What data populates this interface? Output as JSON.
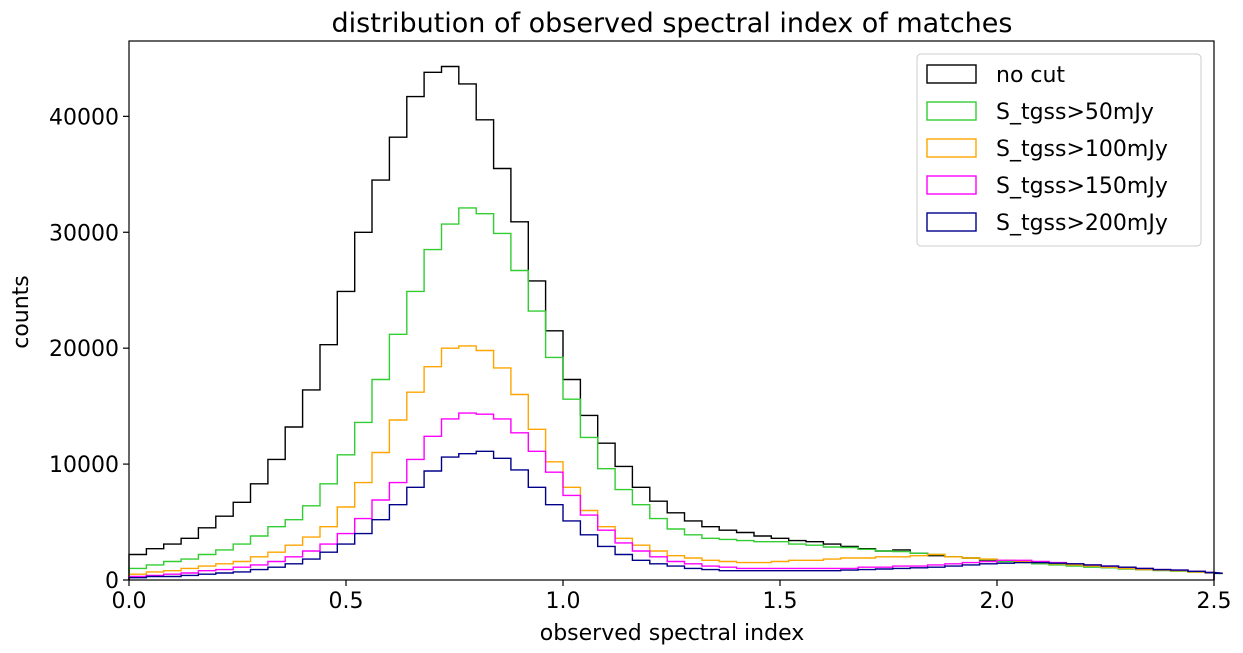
{
  "chart_data": {
    "type": "histogram",
    "title": "distribution of observed spectral index of matches",
    "xlabel": "observed spectral index",
    "ylabel": "counts",
    "xlim": [
      0.0,
      2.5
    ],
    "ylim": [
      0,
      46500
    ],
    "xticks": [
      0.0,
      0.5,
      1.0,
      1.5,
      2.0,
      2.5
    ],
    "xtick_labels": [
      "0.0",
      "0.5",
      "1.0",
      "1.5",
      "2.0",
      "2.5"
    ],
    "yticks": [
      0,
      10000,
      20000,
      30000,
      40000
    ],
    "ytick_labels": [
      "0",
      "10000",
      "20000",
      "30000",
      "40000"
    ],
    "bin_edges_start": 0.0,
    "bin_width": 0.04,
    "legend_position": "top-right",
    "series": [
      {
        "name": "no cut",
        "color": "#000000",
        "values": [
          2200,
          2700,
          3100,
          3600,
          4500,
          5500,
          6700,
          8300,
          10400,
          13200,
          16400,
          20300,
          24900,
          30000,
          34500,
          38200,
          41700,
          43800,
          44300,
          42800,
          39700,
          35500,
          30900,
          25800,
          21500,
          17300,
          14200,
          11800,
          9800,
          8000,
          6800,
          5800,
          5100,
          4600,
          4300,
          4100,
          3800,
          3600,
          3400,
          3300,
          3100,
          2900,
          2700,
          2500,
          2600,
          2300,
          2100,
          2000,
          1900,
          1700,
          1650,
          1550,
          1450,
          1350,
          1250,
          1150,
          1050,
          1000,
          900,
          850,
          800,
          700,
          620,
          580
        ]
      },
      {
        "name": "S_tgss>50mJy",
        "color": "#32cd32",
        "values": [
          1000,
          1300,
          1600,
          1800,
          2200,
          2600,
          3100,
          3800,
          4600,
          5200,
          6400,
          8300,
          10800,
          13600,
          17300,
          21200,
          24900,
          28500,
          30700,
          32100,
          31600,
          29900,
          26700,
          23200,
          19200,
          15600,
          12300,
          9600,
          7800,
          6500,
          5300,
          4400,
          3900,
          3600,
          3500,
          3400,
          3300,
          3300,
          3100,
          3000,
          2850,
          2800,
          2650,
          2500,
          2450,
          2300,
          2200,
          2000,
          1900,
          1750,
          1600,
          1500,
          1400,
          1300,
          1200,
          1100,
          1050,
          950,
          880,
          820,
          760,
          680,
          600,
          560
        ]
      },
      {
        "name": "S_tgss>100mJy",
        "color": "#ffa500",
        "values": [
          500,
          700,
          800,
          1000,
          1200,
          1400,
          1600,
          2000,
          2400,
          3000,
          3700,
          4600,
          6300,
          8400,
          11000,
          13800,
          16200,
          18400,
          20000,
          20200,
          19800,
          18300,
          16000,
          13000,
          10200,
          8000,
          6000,
          4600,
          3600,
          3000,
          2500,
          2100,
          1900,
          1700,
          1600,
          1500,
          1500,
          1600,
          1700,
          1700,
          1800,
          1900,
          1900,
          2000,
          2000,
          2100,
          2200,
          2000,
          1900,
          1800,
          1700,
          1600,
          1500,
          1400,
          1300,
          1200,
          1100,
          1000,
          900,
          850,
          800,
          700,
          620,
          580
        ]
      },
      {
        "name": "S_tgss>150mJy",
        "color": "#ff00ff",
        "values": [
          300,
          400,
          500,
          600,
          800,
          900,
          1100,
          1300,
          1600,
          2000,
          2500,
          3100,
          4000,
          5300,
          6900,
          8400,
          10400,
          12400,
          13900,
          14400,
          14300,
          13900,
          12700,
          11100,
          9300,
          7300,
          5600,
          4300,
          3200,
          2500,
          2000,
          1600,
          1400,
          1200,
          1100,
          1000,
          1000,
          1000,
          1000,
          1000,
          1000,
          1000,
          1100,
          1100,
          1200,
          1200,
          1300,
          1400,
          1500,
          1600,
          1700,
          1700,
          1600,
          1500,
          1400,
          1300,
          1200,
          1100,
          1000,
          900,
          850,
          750,
          650,
          580
        ]
      },
      {
        "name": "S_tgss>200mJy",
        "color": "#00008b",
        "values": [
          200,
          300,
          300,
          400,
          500,
          600,
          700,
          900,
          1100,
          1400,
          1800,
          2400,
          3100,
          4000,
          5200,
          6500,
          8000,
          9400,
          10600,
          10900,
          11100,
          10500,
          9500,
          8000,
          6500,
          5100,
          3900,
          2900,
          2200,
          1700,
          1400,
          1200,
          1000,
          900,
          800,
          800,
          800,
          800,
          800,
          800,
          800,
          850,
          900,
          950,
          1000,
          1050,
          1100,
          1200,
          1300,
          1400,
          1450,
          1500,
          1500,
          1450,
          1400,
          1300,
          1200,
          1100,
          1000,
          900,
          850,
          750,
          650,
          580
        ]
      }
    ]
  }
}
